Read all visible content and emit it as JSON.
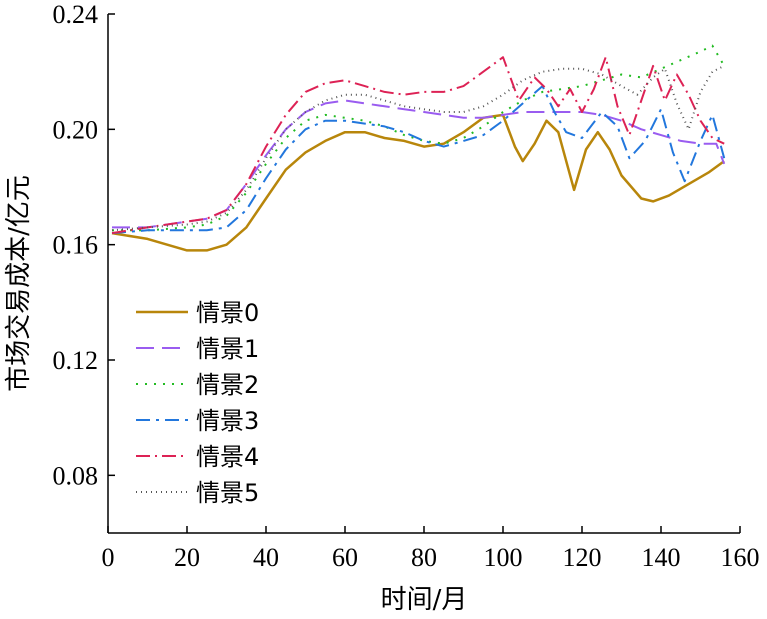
{
  "chart_data": {
    "type": "line",
    "title": "",
    "xlabel": "时间/月",
    "ylabel": "市场交易成本/亿元",
    "xlim": [
      0,
      160
    ],
    "ylim": [
      0.06,
      0.24
    ],
    "xticks": [
      0,
      20,
      40,
      60,
      80,
      100,
      120,
      140,
      160
    ],
    "xtick_labels": [
      "0",
      "20",
      "40",
      "60",
      "80",
      "100",
      "120",
      "140",
      "160"
    ],
    "yticks": [
      0.08,
      0.12,
      0.16,
      0.2,
      0.24
    ],
    "ytick_labels": [
      "0.08",
      "0.12",
      "0.16",
      "0.20",
      "0.24"
    ],
    "grid": false,
    "legend_position": "bottom-left",
    "series": [
      {
        "name": "情景0",
        "color": "#b8860b",
        "dash": "",
        "x": [
          1,
          10,
          20,
          25,
          30,
          35,
          40,
          45,
          50,
          55,
          60,
          65,
          70,
          75,
          80,
          85,
          90,
          95,
          100,
          103,
          105,
          108,
          111,
          114,
          118,
          121,
          124,
          127,
          130,
          135,
          138,
          142,
          147,
          152,
          156
        ],
        "y": [
          0.164,
          0.162,
          0.158,
          0.158,
          0.16,
          0.166,
          0.176,
          0.186,
          0.192,
          0.196,
          0.199,
          0.199,
          0.197,
          0.196,
          0.194,
          0.195,
          0.199,
          0.204,
          0.205,
          0.194,
          0.189,
          0.195,
          0.203,
          0.199,
          0.179,
          0.193,
          0.199,
          0.193,
          0.184,
          0.176,
          0.175,
          0.177,
          0.181,
          0.185,
          0.189
        ]
      },
      {
        "name": "情景1",
        "color": "#9a5cf0",
        "dash": "18,8",
        "x": [
          1,
          10,
          20,
          25,
          30,
          35,
          40,
          45,
          50,
          55,
          60,
          65,
          70,
          75,
          80,
          85,
          90,
          95,
          100,
          105,
          110,
          115,
          120,
          125,
          130,
          135,
          140,
          145,
          150,
          154,
          156
        ],
        "y": [
          0.166,
          0.166,
          0.168,
          0.169,
          0.172,
          0.181,
          0.191,
          0.2,
          0.206,
          0.209,
          0.21,
          0.209,
          0.208,
          0.207,
          0.206,
          0.205,
          0.204,
          0.204,
          0.205,
          0.206,
          0.206,
          0.206,
          0.206,
          0.205,
          0.203,
          0.2,
          0.198,
          0.196,
          0.195,
          0.195,
          0.188
        ]
      },
      {
        "name": "情景2",
        "color": "#22bb22",
        "dash": "2,7",
        "x": [
          1,
          10,
          20,
          25,
          30,
          35,
          40,
          45,
          50,
          55,
          60,
          65,
          70,
          75,
          80,
          85,
          90,
          95,
          100,
          105,
          110,
          115,
          120,
          125,
          130,
          135,
          140,
          145,
          150,
          153,
          156
        ],
        "y": [
          0.165,
          0.165,
          0.166,
          0.167,
          0.17,
          0.178,
          0.188,
          0.197,
          0.203,
          0.205,
          0.204,
          0.203,
          0.201,
          0.198,
          0.196,
          0.195,
          0.197,
          0.201,
          0.206,
          0.21,
          0.213,
          0.214,
          0.215,
          0.217,
          0.219,
          0.218,
          0.221,
          0.224,
          0.227,
          0.229,
          0.222
        ]
      },
      {
        "name": "情景3",
        "color": "#2277dd",
        "dash": "14,6,3,6",
        "x": [
          1,
          10,
          20,
          25,
          30,
          35,
          40,
          45,
          50,
          55,
          60,
          65,
          70,
          75,
          80,
          85,
          90,
          95,
          100,
          105,
          110,
          113,
          116,
          120,
          125,
          129,
          132,
          136,
          140,
          143,
          146,
          150,
          153,
          156
        ],
        "y": [
          0.164,
          0.165,
          0.165,
          0.165,
          0.166,
          0.172,
          0.183,
          0.193,
          0.2,
          0.203,
          0.203,
          0.202,
          0.201,
          0.199,
          0.196,
          0.194,
          0.196,
          0.198,
          0.203,
          0.209,
          0.215,
          0.206,
          0.199,
          0.197,
          0.206,
          0.201,
          0.19,
          0.196,
          0.207,
          0.192,
          0.182,
          0.196,
          0.205,
          0.19
        ]
      },
      {
        "name": "情景4",
        "color": "#dd2255",
        "dash": "14,5,2,5",
        "x": [
          1,
          10,
          20,
          25,
          30,
          35,
          40,
          45,
          50,
          55,
          60,
          65,
          70,
          75,
          80,
          85,
          90,
          95,
          100,
          104,
          108,
          111,
          114,
          117,
          120,
          123,
          126,
          129,
          132,
          135,
          138,
          141,
          144,
          147,
          150,
          153,
          156
        ],
        "y": [
          0.164,
          0.166,
          0.168,
          0.169,
          0.172,
          0.181,
          0.194,
          0.205,
          0.213,
          0.216,
          0.217,
          0.215,
          0.213,
          0.212,
          0.213,
          0.213,
          0.215,
          0.22,
          0.225,
          0.21,
          0.218,
          0.214,
          0.208,
          0.214,
          0.206,
          0.214,
          0.225,
          0.208,
          0.198,
          0.21,
          0.222,
          0.21,
          0.219,
          0.212,
          0.203,
          0.197,
          0.195
        ]
      },
      {
        "name": "情景5",
        "color": "#555555",
        "dash": "1,4",
        "x": [
          1,
          10,
          20,
          25,
          30,
          35,
          40,
          45,
          50,
          55,
          60,
          65,
          70,
          75,
          80,
          85,
          90,
          95,
          100,
          105,
          110,
          115,
          120,
          125,
          130,
          134,
          138,
          141,
          144,
          147,
          150,
          153,
          156
        ],
        "y": [
          0.165,
          0.166,
          0.167,
          0.168,
          0.171,
          0.179,
          0.19,
          0.2,
          0.206,
          0.21,
          0.212,
          0.212,
          0.21,
          0.208,
          0.207,
          0.206,
          0.206,
          0.208,
          0.212,
          0.217,
          0.22,
          0.221,
          0.221,
          0.219,
          0.215,
          0.212,
          0.218,
          0.221,
          0.209,
          0.2,
          0.213,
          0.22,
          0.222
        ]
      }
    ]
  }
}
